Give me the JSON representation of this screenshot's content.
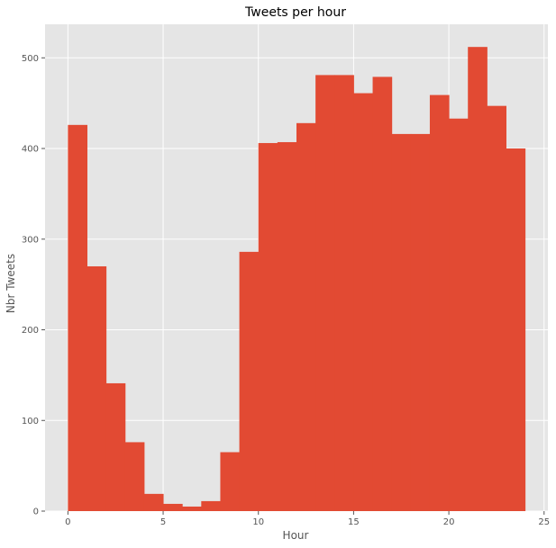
{
  "chart_data": {
    "type": "bar",
    "title": "Tweets per hour",
    "xlabel": "Hour",
    "ylabel": "Nbr Tweets",
    "bins": [
      {
        "x0": 0,
        "x1": 1,
        "value": 426
      },
      {
        "x0": 1,
        "x1": 2,
        "value": 270
      },
      {
        "x0": 2,
        "x1": 3,
        "value": 141
      },
      {
        "x0": 3,
        "x1": 4,
        "value": 76
      },
      {
        "x0": 4,
        "x1": 5,
        "value": 19
      },
      {
        "x0": 5,
        "x1": 6,
        "value": 8
      },
      {
        "x0": 6,
        "x1": 7,
        "value": 5
      },
      {
        "x0": 7,
        "x1": 8,
        "value": 11
      },
      {
        "x0": 8,
        "x1": 9,
        "value": 65
      },
      {
        "x0": 9,
        "x1": 10,
        "value": 286
      },
      {
        "x0": 10,
        "x1": 11,
        "value": 406
      },
      {
        "x0": 11,
        "x1": 12,
        "value": 407
      },
      {
        "x0": 12,
        "x1": 13,
        "value": 428
      },
      {
        "x0": 13,
        "x1": 14,
        "value": 481
      },
      {
        "x0": 14,
        "x1": 15,
        "value": 481
      },
      {
        "x0": 15,
        "x1": 16,
        "value": 461
      },
      {
        "x0": 16,
        "x1": 17,
        "value": 479
      },
      {
        "x0": 17,
        "x1": 18,
        "value": 416
      },
      {
        "x0": 18,
        "x1": 19,
        "value": 416
      },
      {
        "x0": 19,
        "x1": 20,
        "value": 459
      },
      {
        "x0": 20,
        "x1": 21,
        "value": 433
      },
      {
        "x0": 21,
        "x1": 22,
        "value": 512
      },
      {
        "x0": 22,
        "x1": 23,
        "value": 447
      },
      {
        "x0": 23,
        "x1": 24,
        "value": 400
      }
    ],
    "xlim": [
      -1.2,
      25.2
    ],
    "ylim": [
      0,
      537
    ],
    "xticks": [
      0,
      5,
      10,
      15,
      20,
      25
    ],
    "yticks": [
      0,
      100,
      200,
      300,
      400,
      500
    ],
    "grid": true,
    "legend": "none",
    "colors": {
      "bar": "#E24A33",
      "plot_background": "#E5E5E5",
      "grid": "#FFFFFF",
      "text": "#555555",
      "title": "#000000"
    }
  }
}
